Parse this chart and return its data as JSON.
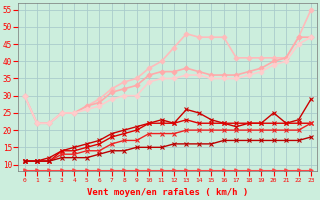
{
  "xlabel": "Vent moyen/en rafales ( km/h )",
  "xlim": [
    -0.5,
    23.5
  ],
  "ylim": [
    8,
    57
  ],
  "yticks": [
    10,
    15,
    20,
    25,
    30,
    35,
    40,
    45,
    50,
    55
  ],
  "xticks": [
    0,
    1,
    2,
    3,
    4,
    5,
    6,
    7,
    8,
    9,
    10,
    11,
    12,
    13,
    14,
    15,
    16,
    17,
    18,
    19,
    20,
    21,
    22,
    23
  ],
  "bg_color": "#cceedd",
  "grid_color": "#aacccc",
  "series": [
    {
      "x": [
        0,
        1,
        2,
        3,
        4,
        5,
        6,
        7,
        8,
        9,
        10,
        11,
        12,
        13,
        14,
        15,
        16,
        17,
        18,
        19,
        20,
        21,
        22,
        23
      ],
      "y": [
        30,
        22,
        22,
        25,
        25,
        27,
        29,
        32,
        34,
        35,
        38,
        40,
        44,
        48,
        47,
        47,
        47,
        41,
        41,
        41,
        41,
        41,
        47,
        55
      ],
      "color": "#ffbbbb",
      "lw": 1.2,
      "marker": "D",
      "ms": 2.5
    },
    {
      "x": [
        0,
        1,
        2,
        3,
        4,
        5,
        6,
        7,
        8,
        9,
        10,
        11,
        12,
        13,
        14,
        15,
        16,
        17,
        18,
        19,
        20,
        21,
        22,
        23
      ],
      "y": [
        30,
        22,
        22,
        25,
        25,
        27,
        28,
        31,
        32,
        33,
        36,
        37,
        37,
        38,
        37,
        36,
        36,
        36,
        37,
        38,
        40,
        41,
        47,
        47
      ],
      "color": "#ffaaaa",
      "lw": 1.2,
      "marker": "D",
      "ms": 2.5
    },
    {
      "x": [
        0,
        1,
        2,
        3,
        4,
        5,
        6,
        7,
        8,
        9,
        10,
        11,
        12,
        13,
        14,
        15,
        16,
        17,
        18,
        19,
        20,
        21,
        22,
        23
      ],
      "y": [
        30,
        22,
        22,
        25,
        25,
        26,
        27,
        29,
        30,
        30,
        34,
        35,
        35,
        36,
        36,
        35,
        35,
        35,
        36,
        37,
        39,
        40,
        45,
        47
      ],
      "color": "#ffcccc",
      "lw": 1.2,
      "marker": "D",
      "ms": 2.5
    },
    {
      "x": [
        0,
        1,
        2,
        3,
        4,
        5,
        6,
        7,
        8,
        9,
        10,
        11,
        12,
        13,
        14,
        15,
        16,
        17,
        18,
        19,
        20,
        21,
        22,
        23
      ],
      "y": [
        11,
        11,
        12,
        14,
        15,
        16,
        17,
        19,
        20,
        21,
        22,
        23,
        22,
        26,
        25,
        23,
        22,
        21,
        22,
        22,
        25,
        22,
        23,
        29
      ],
      "color": "#cc0000",
      "lw": 1.0,
      "marker": "x",
      "ms": 2.5
    },
    {
      "x": [
        0,
        1,
        2,
        3,
        4,
        5,
        6,
        7,
        8,
        9,
        10,
        11,
        12,
        13,
        14,
        15,
        16,
        17,
        18,
        19,
        20,
        21,
        22,
        23
      ],
      "y": [
        11,
        11,
        11,
        14,
        14,
        15,
        16,
        18,
        19,
        20,
        22,
        22,
        22,
        23,
        22,
        22,
        22,
        22,
        22,
        22,
        22,
        22,
        22,
        22
      ],
      "color": "#dd0000",
      "lw": 1.0,
      "marker": "x",
      "ms": 2.5
    },
    {
      "x": [
        0,
        1,
        2,
        3,
        4,
        5,
        6,
        7,
        8,
        9,
        10,
        11,
        12,
        13,
        14,
        15,
        16,
        17,
        18,
        19,
        20,
        21,
        22,
        23
      ],
      "y": [
        11,
        11,
        11,
        13,
        13,
        14,
        14,
        16,
        17,
        17,
        19,
        19,
        19,
        20,
        20,
        20,
        20,
        20,
        20,
        20,
        20,
        20,
        20,
        22
      ],
      "color": "#ee2222",
      "lw": 1.0,
      "marker": "x",
      "ms": 2.5
    },
    {
      "x": [
        0,
        1,
        2,
        3,
        4,
        5,
        6,
        7,
        8,
        9,
        10,
        11,
        12,
        13,
        14,
        15,
        16,
        17,
        18,
        19,
        20,
        21,
        22,
        23
      ],
      "y": [
        11,
        11,
        11,
        12,
        12,
        12,
        13,
        14,
        14,
        15,
        15,
        15,
        16,
        16,
        16,
        16,
        17,
        17,
        17,
        17,
        17,
        17,
        17,
        18
      ],
      "color": "#bb0000",
      "lw": 1.0,
      "marker": "x",
      "ms": 2.5
    },
    {
      "x": [
        0,
        1,
        2,
        3,
        4,
        5,
        6,
        7,
        8,
        9,
        10,
        11,
        12,
        13,
        14,
        15,
        16,
        17,
        18,
        19,
        20,
        21,
        22,
        23
      ],
      "y": [
        8.5,
        8.5,
        8.5,
        8.5,
        8.5,
        8.5,
        8.5,
        8.5,
        8.5,
        8.5,
        8.5,
        8.5,
        8.5,
        8.5,
        8.5,
        8.5,
        8.5,
        8.5,
        8.5,
        8.5,
        8.5,
        8.5,
        8.5,
        8.5
      ],
      "color": "#ff4444",
      "lw": 0.8,
      "marker": ">",
      "ms": 2.5
    }
  ]
}
